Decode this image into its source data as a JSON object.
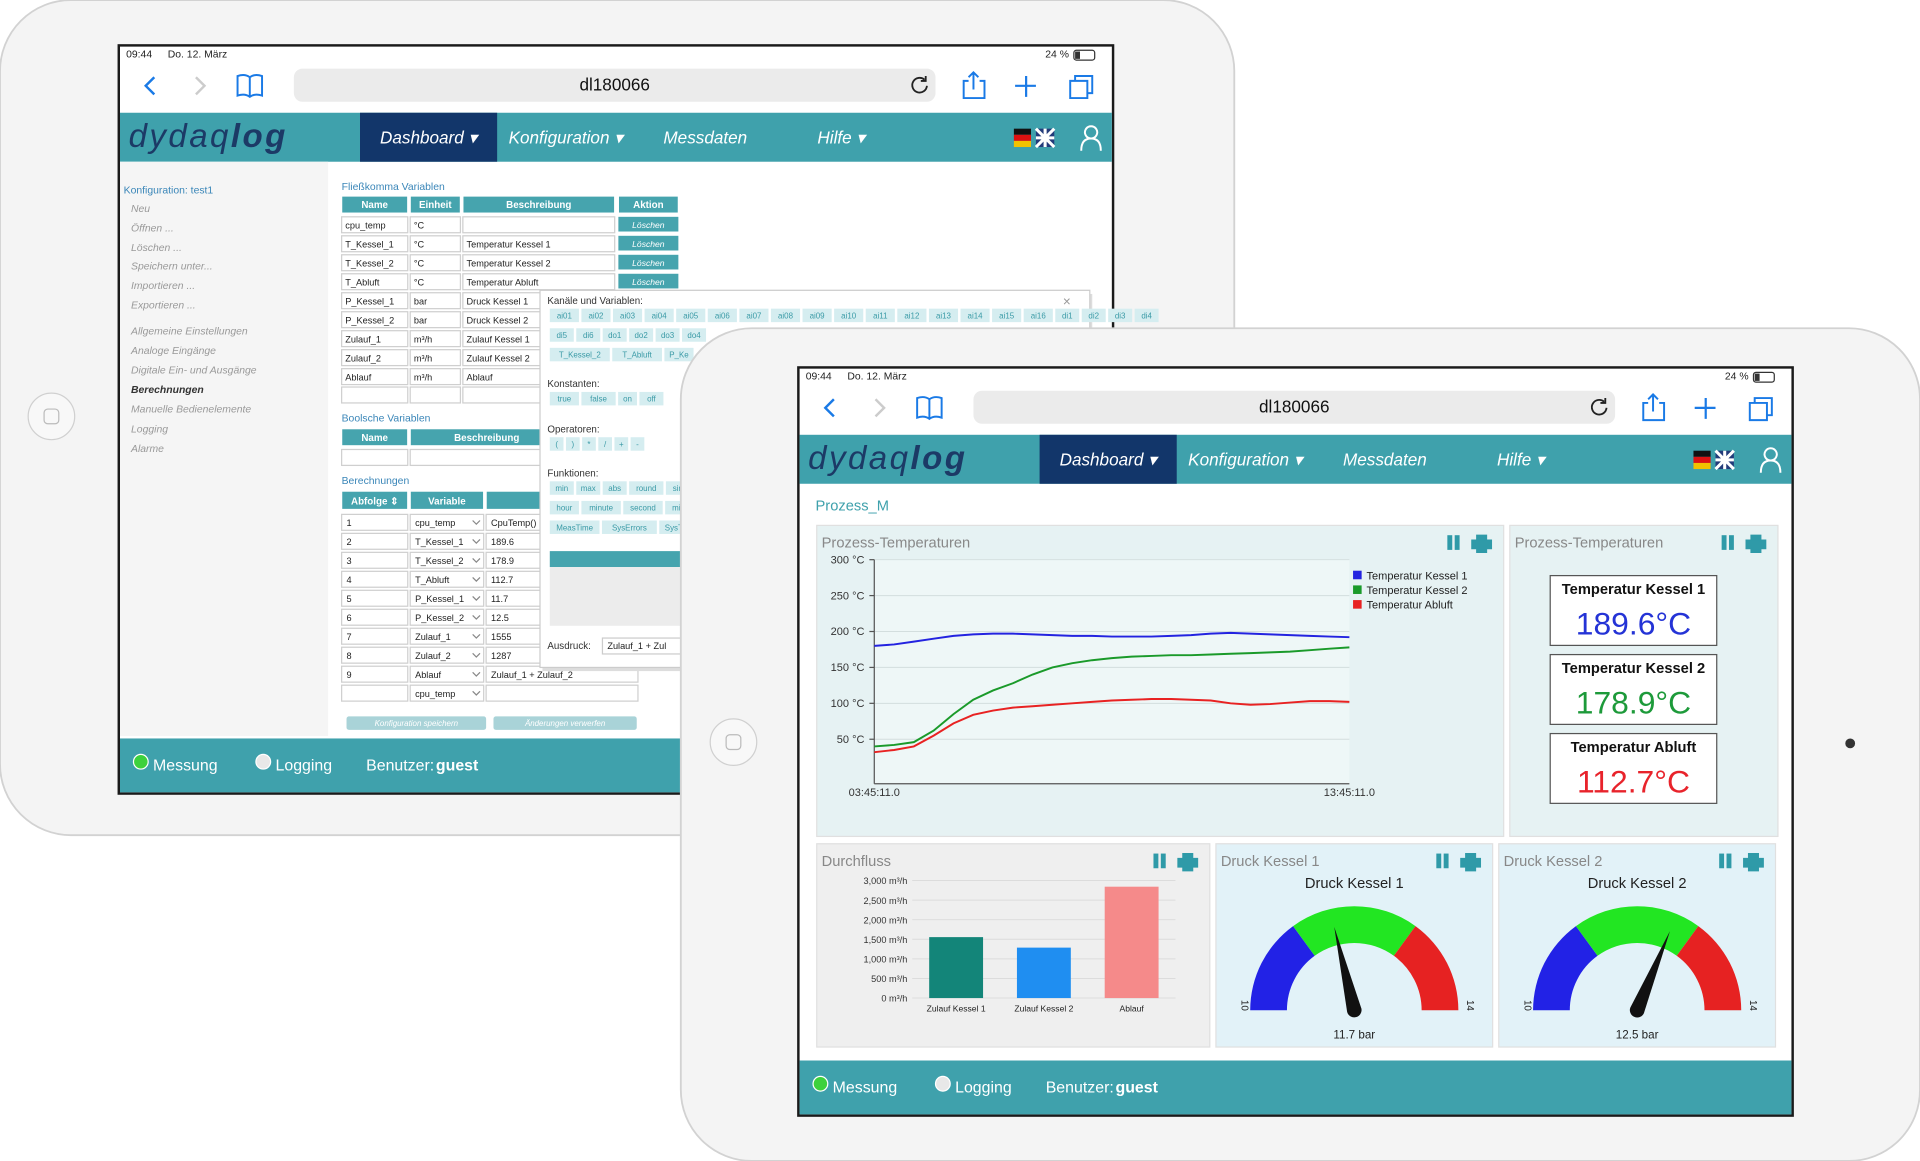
{
  "app": {
    "status": {
      "time": "09:44",
      "date": "Do. 12. März",
      "battery": "24 %"
    },
    "url": "dl180066",
    "logo": [
      "dydaq",
      "log"
    ],
    "menu": [
      "Dashboard ▾",
      "Konfiguration ▾",
      "Messdaten",
      "Hilfe ▾"
    ],
    "footer": {
      "measure": "Messung",
      "logging": "Logging",
      "user_label": "Benutzer:",
      "user": "guest"
    }
  },
  "back": {
    "sidebar": {
      "title": "Konfiguration: test1",
      "items": [
        "Neu",
        "Öffnen ...",
        "Löschen ...",
        "Speichern unter...",
        "Importieren ...",
        "Exportieren ...",
        "Allgemeine Einstellungen",
        "Analoge Eingänge",
        "Digitale Ein- und Ausgänge",
        "Berechnungen",
        "Manuelle Bedienelemente",
        "Logging",
        "Alarme"
      ]
    },
    "float_vars": {
      "title": "Fließkomma Variablen",
      "header": [
        "Name",
        "Einheit",
        "Beschreibung",
        "Aktion"
      ],
      "rows": [
        {
          "name": "cpu_temp",
          "unit": "°C",
          "action": "Löschen"
        },
        {
          "name": "T_Kessel_1",
          "unit": "°C",
          "desc": "Temperatur Kessel 1",
          "action": "Löschen"
        },
        {
          "name": "T_Kessel_2",
          "unit": "°C",
          "desc": "Temperatur Kessel 2",
          "action": "Löschen"
        },
        {
          "name": "T_Abluft",
          "unit": "°C",
          "desc": "Temperatur Abluft",
          "action": "Löschen"
        },
        {
          "name": "P_Kessel_1",
          "unit": "bar",
          "desc": "Druck Kessel 1"
        },
        {
          "name": "P_Kessel_2",
          "unit": "bar",
          "desc": "Druck Kessel 2"
        },
        {
          "name": "Zulauf_1",
          "unit": "m³/h",
          "desc": "Zulauf Kessel 1"
        },
        {
          "name": "Zulauf_2",
          "unit": "m³/h",
          "desc": "Zulauf Kessel 2"
        },
        {
          "name": "Ablauf",
          "unit": "m³/h",
          "desc": "Ablauf"
        }
      ]
    },
    "bool_vars": {
      "title": "Boolsche Variablen",
      "header": [
        "Name",
        "Beschreibung"
      ]
    },
    "calculations": {
      "title": "Berechnungen",
      "header": [
        "Abfolge ⇕",
        "Variable"
      ],
      "rows": [
        {
          "seq": "1",
          "var": "cpu_temp",
          "expr": "CpuTemp()"
        },
        {
          "seq": "2",
          "var": "T_Kessel_1",
          "expr": "189.6"
        },
        {
          "seq": "3",
          "var": "T_Kessel_2",
          "expr": "178.9"
        },
        {
          "seq": "4",
          "var": "T_Abluft",
          "expr": "112.7"
        },
        {
          "seq": "5",
          "var": "P_Kessel_1",
          "expr": "11.7"
        },
        {
          "seq": "6",
          "var": "P_Kessel_2",
          "expr": "12.5"
        },
        {
          "seq": "7",
          "var": "Zulauf_1",
          "expr": "1555"
        },
        {
          "seq": "8",
          "var": "Zulauf_2",
          "expr": "1287"
        },
        {
          "seq": "9",
          "var": "Ablauf",
          "expr": "Zulauf_1 + Zulauf_2"
        },
        {
          "var": "cpu_temp"
        }
      ]
    },
    "buttons": [
      "Konfiguration speichern",
      "Änderungen verwerfen"
    ],
    "popup": {
      "title": "Kanäle und Variablen:",
      "close": "×",
      "channels": [
        [
          "ai01",
          "ai02",
          "ai03",
          "ai04",
          "ai05",
          "ai06",
          "ai07",
          "ai08",
          "ai09",
          "ai10",
          "ai11",
          "ai12",
          "ai13",
          "ai14",
          "ai15",
          "ai16",
          "di1",
          "di2",
          "di3",
          "di4"
        ],
        [
          "di5",
          "di6",
          "do1",
          "do2",
          "do3",
          "do4"
        ],
        [
          "T_Kessel_2",
          "T_Abluft",
          "P_Ke"
        ]
      ],
      "constants_title": "Konstanten:",
      "constants": [
        "true",
        "false",
        "on",
        "off"
      ],
      "operators_title": "Operatoren:",
      "operators": [
        "(",
        ")",
        "*",
        "/",
        "+",
        "-"
      ],
      "functions_title": "Funktionen:",
      "functions": [
        [
          "min",
          "max",
          "abs",
          "round",
          "sin"
        ],
        [
          "hour",
          "minute",
          "second",
          "mil"
        ],
        [
          "MeasTime",
          "SysErrors",
          "SysT"
        ]
      ],
      "expression_label": "Ausdruck:",
      "expression": "Zulauf_1 + Zul"
    }
  },
  "front": {
    "page_title": "Prozess_M",
    "temp_chart": {
      "title": "Prozess-Temperaturen",
      "x_labels": [
        "03:45:11.0",
        "13:45:11.0"
      ],
      "ylim": [
        -12,
        300
      ],
      "yticks": [
        {
          "value": 50,
          "label": "50 °C"
        },
        {
          "value": 100,
          "label": "100 °C"
        },
        {
          "value": 150,
          "label": "150 °C"
        },
        {
          "value": 200,
          "label": "200 °C"
        },
        {
          "value": 250,
          "label": "250 °C"
        },
        {
          "value": 300,
          "label": "300 °C"
        }
      ],
      "series": [
        {
          "name": "Temperatur Kessel 1",
          "color": "#2323e0",
          "values": [
            180,
            182,
            186,
            190,
            194,
            196,
            197,
            197,
            196,
            195,
            194,
            194,
            193,
            193,
            193,
            194,
            195,
            197,
            198,
            197,
            196,
            195,
            194,
            193,
            192
          ]
        },
        {
          "name": "Temperatur Kessel 2",
          "color": "#1a9a2a",
          "values": [
            40,
            42,
            46,
            62,
            85,
            105,
            118,
            128,
            140,
            150,
            156,
            160,
            163,
            165,
            166,
            167,
            167,
            168,
            169,
            170,
            171,
            172,
            174,
            176,
            178
          ]
        },
        {
          "name": "Temperatur Abluft",
          "color": "#e82222",
          "values": [
            32,
            35,
            40,
            55,
            72,
            84,
            90,
            94,
            96,
            98,
            100,
            102,
            104,
            105,
            106,
            106,
            105,
            104,
            100,
            98,
            99,
            101,
            103,
            103,
            102
          ]
        }
      ]
    },
    "temp_display": {
      "title": "Prozess-Temperaturen",
      "items": [
        {
          "label": "Temperatur Kessel 1",
          "value": "189.6°C",
          "color": "#2433d6"
        },
        {
          "label": "Temperatur Kessel 2",
          "value": "178.9°C",
          "color": "#1d9a3a"
        },
        {
          "label": "Temperatur Abluft",
          "value": "112.7°C",
          "color": "#e8232b"
        }
      ]
    },
    "flow": {
      "title": "Durchfluss",
      "categories": [
        "Zulauf Kessel 1",
        "Zulauf Kessel 2",
        "Ablauf"
      ],
      "values": [
        1555,
        1287,
        2842
      ],
      "colors": [
        "#138579",
        "#1f8ef1",
        "#f58a8a"
      ],
      "ylim": [
        0,
        3000
      ],
      "yticks": [
        {
          "value": 0,
          "label": "0 m³/h"
        },
        {
          "value": 500,
          "label": "500 m³/h"
        },
        {
          "value": 1000,
          "label": "1,000 m³/h"
        },
        {
          "value": 1500,
          "label": "1,500 m³/h"
        },
        {
          "value": 2000,
          "label": "2,000 m³/h"
        },
        {
          "value": 2500,
          "label": "2,500 m³/h"
        },
        {
          "value": 3000,
          "label": "3,000 m³/h"
        }
      ]
    },
    "gauges": [
      {
        "title": "Druck Kessel 1",
        "subtitle": "Druck Kessel 1",
        "min": 10,
        "max": 14,
        "value": 11.7,
        "value_label": "11.7 bar",
        "bands": [
          {
            "from": 10,
            "to": 11.2,
            "color": "#2222e6"
          },
          {
            "from": 11.2,
            "to": 12.8,
            "color": "#22e622"
          },
          {
            "from": 12.8,
            "to": 14,
            "color": "#e62222"
          }
        ]
      },
      {
        "title": "Druck Kessel 2",
        "subtitle": "Druck Kessel 2",
        "min": 10,
        "max": 14,
        "value": 12.5,
        "value_label": "12.5 bar",
        "bands": [
          {
            "from": 10,
            "to": 11.2,
            "color": "#2222e6"
          },
          {
            "from": 11.2,
            "to": 12.8,
            "color": "#22e622"
          },
          {
            "from": 12.8,
            "to": 14,
            "color": "#e62222"
          }
        ]
      }
    ]
  }
}
